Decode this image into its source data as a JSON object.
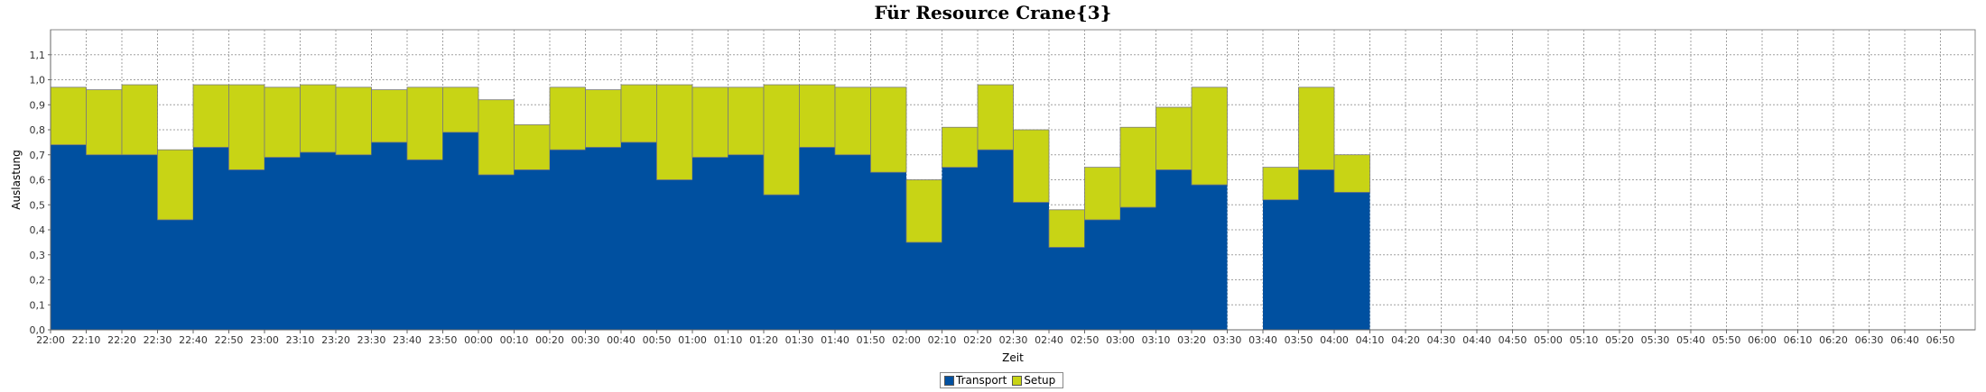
{
  "chart_data": {
    "type": "bar",
    "stacked": true,
    "title": "Für Resource Crane{3}",
    "xlabel": "Zeit",
    "ylabel": "Auslastung",
    "ylim": [
      0,
      1.2
    ],
    "yticks": [
      "0,0",
      "0,1",
      "0,2",
      "0,3",
      "0,4",
      "0,5",
      "0,6",
      "0,7",
      "0,8",
      "0,9",
      "1,0",
      "1,1"
    ],
    "grid": true,
    "legend_position": "bottom-center",
    "x_tick_labels": [
      "22:00",
      "22:10",
      "22:20",
      "22:30",
      "22:40",
      "22:50",
      "23:00",
      "23:10",
      "23:20",
      "23:30",
      "23:40",
      "23:50",
      "00:00",
      "00:10",
      "00:20",
      "00:30",
      "00:40",
      "00:50",
      "01:00",
      "01:10",
      "01:20",
      "01:30",
      "01:40",
      "01:50",
      "02:00",
      "02:10",
      "02:20",
      "02:30",
      "02:40",
      "02:50",
      "03:00",
      "03:10",
      "03:20",
      "03:30",
      "03:40",
      "03:50",
      "04:00",
      "04:10",
      "04:20",
      "04:30",
      "04:40",
      "04:50",
      "05:00",
      "05:10",
      "05:20",
      "05:30",
      "05:40",
      "05:50",
      "06:00",
      "06:10",
      "06:20",
      "06:30",
      "06:40",
      "06:50"
    ],
    "categories": [
      "22:00",
      "22:10",
      "22:20",
      "22:30",
      "22:40",
      "22:50",
      "23:00",
      "23:10",
      "23:20",
      "23:30",
      "23:40",
      "23:50",
      "00:00",
      "00:10",
      "00:20",
      "00:30",
      "00:40",
      "00:50",
      "01:00",
      "01:10",
      "01:20",
      "01:30",
      "01:40",
      "01:50",
      "02:00",
      "02:10",
      "02:20",
      "02:30",
      "02:40",
      "02:50",
      "03:00",
      "03:10",
      "03:20",
      "03:30",
      "03:40",
      "03:50",
      "04:00"
    ],
    "series": [
      {
        "name": "Transport",
        "color": "#0050a0",
        "values": [
          0.74,
          0.7,
          0.7,
          0.44,
          0.73,
          0.64,
          0.69,
          0.71,
          0.7,
          0.75,
          0.68,
          0.79,
          0.62,
          0.64,
          0.72,
          0.73,
          0.75,
          0.6,
          0.69,
          0.7,
          0.54,
          0.73,
          0.7,
          0.63,
          0.35,
          0.65,
          0.72,
          0.51,
          0.33,
          0.44,
          0.49,
          0.64,
          0.58,
          null,
          0.52,
          0.64,
          0.55
        ]
      },
      {
        "name": "Setup",
        "color": "#c8d415",
        "values": [
          0.23,
          0.26,
          0.28,
          0.28,
          0.25,
          0.34,
          0.28,
          0.27,
          0.27,
          0.21,
          0.29,
          0.18,
          0.3,
          0.18,
          0.25,
          0.23,
          0.23,
          0.38,
          0.28,
          0.27,
          0.44,
          0.25,
          0.27,
          0.34,
          0.25,
          0.16,
          0.26,
          0.29,
          0.15,
          0.21,
          0.32,
          0.25,
          0.39,
          null,
          0.13,
          0.33,
          0.15
        ]
      }
    ]
  }
}
